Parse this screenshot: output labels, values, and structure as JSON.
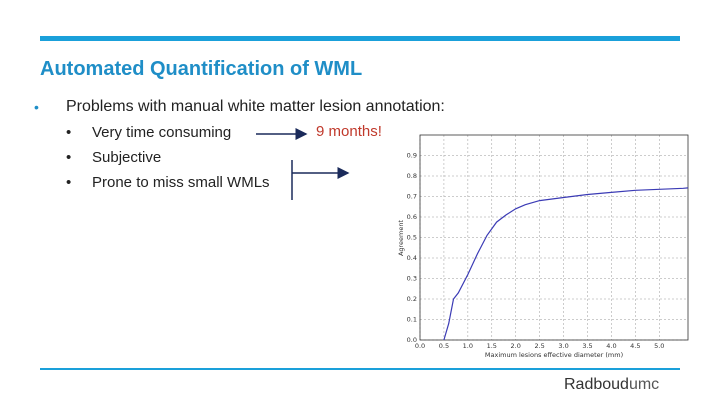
{
  "slide": {
    "title": "Automated Quantification of WML",
    "main_bullet_symbol": "•",
    "main_bullet_text": "Problems with manual white matter lesion annotation:",
    "sub_bullets": [
      {
        "symbol": "•",
        "text": "Very time consuming"
      },
      {
        "symbol": "•",
        "text": "Subjective"
      },
      {
        "symbol": "•",
        "text": "Prone to miss small WMLs"
      }
    ],
    "callout_text": "9 months!",
    "accent_color": "#1aa0da",
    "callout_color": "#c0392b",
    "logo": {
      "part1": "Radboud",
      "part2": "umc"
    }
  },
  "chart_data": {
    "type": "line",
    "xlabel": "Maximum lesions effective diameter (mm)",
    "ylabel": "Agreement",
    "xlim": [
      0.0,
      5.6
    ],
    "ylim": [
      0.0,
      1.0
    ],
    "xticks": [
      "0.0",
      "0.5",
      "1.0",
      "1.5",
      "2.0",
      "2.5",
      "3.0",
      "3.5",
      "4.0",
      "4.5",
      "5.0"
    ],
    "yticks": [
      "0.0",
      "0.1",
      "0.2",
      "0.3",
      "0.4",
      "0.5",
      "0.6",
      "0.7",
      "0.8",
      "0.9"
    ],
    "grid": true,
    "series": [
      {
        "color": "#3b3bb5",
        "x": [
          0.5,
          0.6,
          0.7,
          0.8,
          1.0,
          1.2,
          1.4,
          1.6,
          1.8,
          2.0,
          2.2,
          2.5,
          3.0,
          3.5,
          4.0,
          4.5,
          5.0,
          5.5,
          5.6
        ],
        "y": [
          0.0,
          0.08,
          0.2,
          0.23,
          0.32,
          0.42,
          0.51,
          0.575,
          0.61,
          0.64,
          0.66,
          0.68,
          0.695,
          0.71,
          0.72,
          0.73,
          0.735,
          0.74,
          0.742
        ]
      }
    ]
  }
}
